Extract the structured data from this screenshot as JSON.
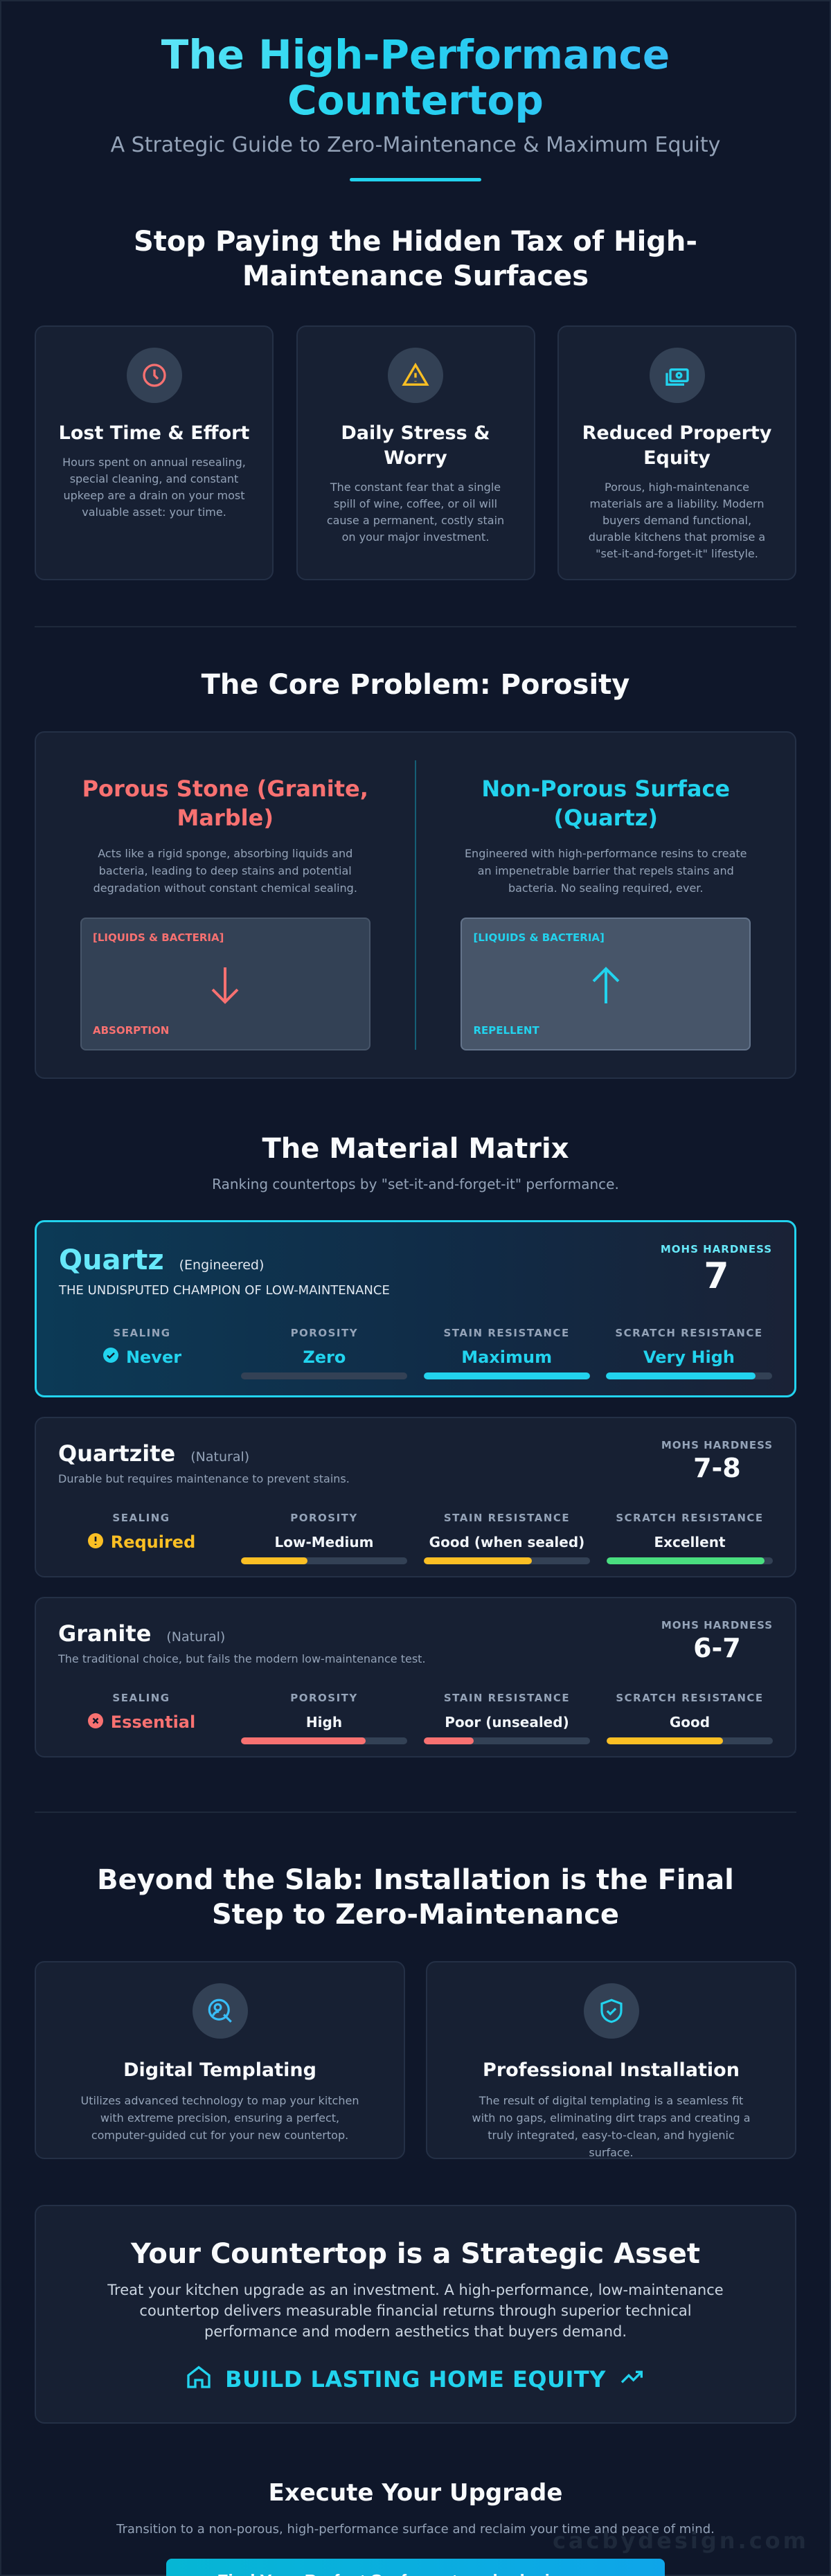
{
  "hero": {
    "title": "The High-Performance Countertop",
    "subtitle": "A Strategic Guide to Zero-Maintenance & Maximum Equity"
  },
  "tax": {
    "heading": "Stop Paying the Hidden Tax of High-Maintenance Surfaces",
    "cards": [
      {
        "icon": "clock-icon",
        "title": "Lost Time & Effort",
        "text": "Hours spent on annual resealing, special cleaning, and constant upkeep are a drain on your most valuable asset: your time."
      },
      {
        "icon": "warning-icon",
        "title": "Daily Stress & Worry",
        "text": "The constant fear that a single spill of wine, coffee, or oil will cause a permanent, costly stain on your major investment."
      },
      {
        "icon": "money-icon",
        "title": "Reduced Property Equity",
        "text": "Porous, high-maintenance materials are a liability. Modern buyers demand functional, durable kitchens that promise a \"set-it-and-forget-it\" lifestyle."
      }
    ]
  },
  "porosity": {
    "heading": "The Core Problem: Porosity",
    "left": {
      "title": "Porous Stone (Granite, Marble)",
      "text": "Acts like a rigid sponge, absorbing liquids and bacteria, leading to deep stains and potential degradation without constant chemical sealing.",
      "tag": "[LIQUIDS & BACTERIA]",
      "result": "ABSORPTION"
    },
    "right": {
      "title": "Non-Porous Surface (Quartz)",
      "text": "Engineered with high-performance resins to create an impenetrable barrier that repels stains and bacteria. No sealing required, ever.",
      "tag": "[LIQUIDS & BACTERIA]",
      "result": "REPELLENT"
    }
  },
  "matrix": {
    "heading": "The Material Matrix",
    "tagline": "Ranking countertops by \"set-it-and-forget-it\" performance.",
    "labels": {
      "mohs": "MOHS HARDNESS",
      "sealing": "SEALING",
      "porosity": "POROSITY",
      "stain": "STAIN RESISTANCE",
      "scratch": "SCRATCH RESISTANCE"
    },
    "materials": [
      {
        "name": "Quartz",
        "type": "(Engineered)",
        "desc": "THE UNDISPUTED CHAMPION OF LOW-MAINTENANCE",
        "mohs": "7",
        "sealing": "Never",
        "sealing_color": "#22d3ee",
        "porosity": "Zero",
        "porosity_level": 0,
        "porosity_color": "#22d3ee",
        "stain": "Maximum",
        "stain_level": 1.0,
        "stain_color": "#22d3ee",
        "scratch": "Very High",
        "scratch_level": 0.9,
        "scratch_color": "#22d3ee"
      },
      {
        "name": "Quartzite",
        "type": "(Natural)",
        "desc": "Durable but requires maintenance to prevent stains.",
        "mohs": "7-8",
        "sealing": "Required",
        "sealing_color": "#fbbf24",
        "porosity": "Low-Medium",
        "porosity_level": 0.4,
        "porosity_color": "#fbbf24",
        "stain": "Good (when sealed)",
        "stain_level": 0.65,
        "stain_color": "#fbbf24",
        "scratch": "Excellent",
        "scratch_level": 0.95,
        "scratch_color": "#4ade80"
      },
      {
        "name": "Granite",
        "type": "(Natural)",
        "desc": "The traditional choice, but fails the modern low-maintenance test.",
        "mohs": "6-7",
        "sealing": "Essential",
        "sealing_color": "#f87171",
        "porosity": "High",
        "porosity_level": 0.75,
        "porosity_color": "#f87171",
        "stain": "Poor (unsealed)",
        "stain_level": 0.3,
        "stain_color": "#f87171",
        "scratch": "Good",
        "scratch_level": 0.7,
        "scratch_color": "#fbbf24"
      }
    ]
  },
  "beyond": {
    "heading": "Beyond the Slab: Installation is the Final Step to Zero-Maintenance",
    "cards": [
      {
        "icon": "digital-template-icon",
        "title": "Digital Templating",
        "text": "Utilizes advanced technology to map your kitchen with extreme precision, ensuring a perfect, computer-guided cut for your new countertop."
      },
      {
        "icon": "shield-check-icon",
        "title": "Professional Installation",
        "text": "The result of digital templating is a seamless fit with no gaps, eliminating dirt traps and creating a truly integrated, easy-to-clean, and hygienic surface."
      }
    ]
  },
  "asset": {
    "heading": "Your Countertop is a Strategic Asset",
    "text": "Treat your kitchen upgrade as an investment. A high-performance, low-maintenance countertop delivers measurable financial returns through superior technical performance and modern aesthetics that buyers demand.",
    "equity": "BUILD LASTING HOME EQUITY"
  },
  "execute": {
    "heading": "Execute Your Upgrade",
    "text": "Transition to a non-porous, high-performance surface and reclaim your time and peace of mind.",
    "cta": "Find Your Perfect Surface at cacbydesign.com"
  },
  "watermark": "cacbydesign.com",
  "colors": {
    "accent": "#22d3ee",
    "danger": "#f87171",
    "warning": "#fbbf24",
    "success": "#4ade80",
    "background": "#0f172a"
  }
}
